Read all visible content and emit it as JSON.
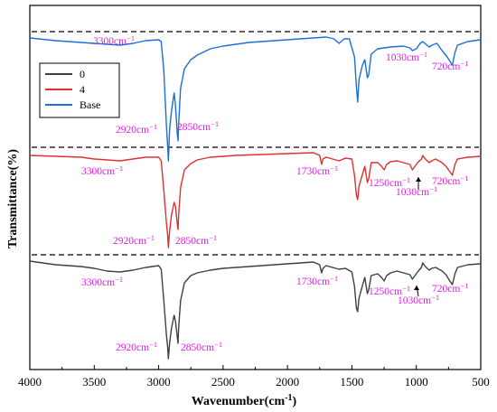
{
  "chart_data": {
    "type": "line",
    "title": "",
    "xlabel": "Wavenumber(cm",
    "xlabel_sup": "-1",
    "xlabel_close": ")",
    "ylabel": "Transmittance(%)",
    "xlim": [
      4000,
      500
    ],
    "x_reversed": true,
    "x_ticks": [
      4000,
      3500,
      3000,
      2500,
      2000,
      1500,
      1000,
      500
    ],
    "x_tick_labels": [
      "4000",
      "3500",
      "3000",
      "2500",
      "2000",
      "1500",
      "1000",
      "500"
    ],
    "y_ticks_shown": false,
    "legend": {
      "position": "upper-left",
      "entries": [
        {
          "label": "0",
          "color": "#404040"
        },
        {
          "label": "4",
          "color": "#e03030"
        },
        {
          "label": "Base",
          "color": "#1a6fd8"
        }
      ]
    },
    "baselines": [
      {
        "series": "Base",
        "style": "dashed",
        "color": "#000000"
      },
      {
        "series": "4",
        "style": "dashed",
        "color": "#000000"
      },
      {
        "series": "0",
        "style": "dashed",
        "color": "#000000"
      }
    ],
    "series": [
      {
        "name": "Base",
        "color": "#1a6fd8",
        "points": [
          [
            4000,
            4
          ],
          [
            3800,
            7
          ],
          [
            3600,
            9
          ],
          [
            3400,
            11
          ],
          [
            3300,
            12
          ],
          [
            3200,
            10
          ],
          [
            3100,
            7
          ],
          [
            3000,
            6
          ],
          [
            2980,
            8
          ],
          [
            2960,
            40
          ],
          [
            2940,
            100
          ],
          [
            2930,
            125
          ],
          [
            2925,
            140
          ],
          [
            2915,
            105
          ],
          [
            2900,
            85
          ],
          [
            2880,
            65
          ],
          [
            2870,
            78
          ],
          [
            2855,
            110
          ],
          [
            2850,
            118
          ],
          [
            2845,
            100
          ],
          [
            2830,
            60
          ],
          [
            2800,
            38
          ],
          [
            2750,
            28
          ],
          [
            2700,
            23
          ],
          [
            2600,
            16
          ],
          [
            2500,
            13
          ],
          [
            2400,
            11
          ],
          [
            2300,
            9
          ],
          [
            2200,
            8
          ],
          [
            2000,
            6
          ],
          [
            1800,
            4
          ],
          [
            1700,
            3
          ],
          [
            1640,
            5
          ],
          [
            1600,
            10
          ],
          [
            1560,
            5
          ],
          [
            1520,
            5
          ],
          [
            1480,
            25
          ],
          [
            1465,
            58
          ],
          [
            1455,
            75
          ],
          [
            1445,
            50
          ],
          [
            1420,
            35
          ],
          [
            1400,
            28
          ],
          [
            1380,
            48
          ],
          [
            1370,
            45
          ],
          [
            1350,
            22
          ],
          [
            1300,
            16
          ],
          [
            1200,
            14
          ],
          [
            1100,
            13
          ],
          [
            1050,
            15
          ],
          [
            1030,
            18
          ],
          [
            1000,
            16
          ],
          [
            970,
            10
          ],
          [
            950,
            8
          ],
          [
            900,
            14
          ],
          [
            880,
            12
          ],
          [
            840,
            10
          ],
          [
            800,
            18
          ],
          [
            760,
            25
          ],
          [
            730,
            32
          ],
          [
            720,
            34
          ],
          [
            700,
            20
          ],
          [
            680,
            12
          ],
          [
            600,
            8
          ],
          [
            500,
            6
          ]
        ],
        "peak_labels": [
          {
            "text": "3300cm",
            "x_wn": 3300,
            "anchor_level": 0.07
          },
          {
            "text": "2920cm",
            "x_wn": 2920,
            "anchor_level": 0.78
          },
          {
            "text": "2850cm",
            "x_wn": 2850,
            "anchor_level": 0.72
          },
          {
            "text": "1030cm",
            "x_wn": 1030,
            "anchor_level": 0.22
          },
          {
            "text": "720cm",
            "x_wn": 720,
            "anchor_level": 0.32
          }
        ]
      },
      {
        "name": "4",
        "color": "#e03030",
        "points": [
          [
            4000,
            6
          ],
          [
            3800,
            7
          ],
          [
            3600,
            8
          ],
          [
            3500,
            10
          ],
          [
            3400,
            11
          ],
          [
            3300,
            12
          ],
          [
            3200,
            10
          ],
          [
            3100,
            8
          ],
          [
            3000,
            8
          ],
          [
            2980,
            12
          ],
          [
            2960,
            45
          ],
          [
            2940,
            80
          ],
          [
            2930,
            95
          ],
          [
            2925,
            108
          ],
          [
            2915,
            90
          ],
          [
            2900,
            72
          ],
          [
            2880,
            58
          ],
          [
            2870,
            62
          ],
          [
            2855,
            82
          ],
          [
            2850,
            88
          ],
          [
            2845,
            72
          ],
          [
            2830,
            42
          ],
          [
            2800,
            22
          ],
          [
            2750,
            15
          ],
          [
            2700,
            11
          ],
          [
            2600,
            8
          ],
          [
            2500,
            7
          ],
          [
            2400,
            6
          ],
          [
            2200,
            5
          ],
          [
            2000,
            4
          ],
          [
            1800,
            3
          ],
          [
            1750,
            6
          ],
          [
            1735,
            16
          ],
          [
            1725,
            10
          ],
          [
            1700,
            8
          ],
          [
            1650,
            10
          ],
          [
            1600,
            12
          ],
          [
            1550,
            9
          ],
          [
            1500,
            10
          ],
          [
            1480,
            28
          ],
          [
            1465,
            50
          ],
          [
            1455,
            55
          ],
          [
            1445,
            40
          ],
          [
            1420,
            28
          ],
          [
            1400,
            18
          ],
          [
            1380,
            36
          ],
          [
            1370,
            32
          ],
          [
            1350,
            14
          ],
          [
            1300,
            14
          ],
          [
            1270,
            18
          ],
          [
            1250,
            22
          ],
          [
            1230,
            16
          ],
          [
            1200,
            13
          ],
          [
            1150,
            12
          ],
          [
            1100,
            14
          ],
          [
            1050,
            16
          ],
          [
            1030,
            22
          ],
          [
            1010,
            18
          ],
          [
            990,
            14
          ],
          [
            960,
            10
          ],
          [
            950,
            6
          ],
          [
            930,
            10
          ],
          [
            900,
            14
          ],
          [
            880,
            12
          ],
          [
            850,
            10
          ],
          [
            800,
            14
          ],
          [
            770,
            18
          ],
          [
            740,
            24
          ],
          [
            720,
            28
          ],
          [
            700,
            16
          ],
          [
            680,
            10
          ],
          [
            600,
            8
          ],
          [
            500,
            7
          ]
        ],
        "peak_labels": [
          {
            "text": "3300cm",
            "x_wn": 3300
          },
          {
            "text": "2920cm",
            "x_wn": 2920
          },
          {
            "text": "2850cm",
            "x_wn": 2850
          },
          {
            "text": "1730cm",
            "x_wn": 1730
          },
          {
            "text": "1250cm",
            "x_wn": 1250
          },
          {
            "text": "1030cm",
            "x_wn": 1030
          },
          {
            "text": "720cm",
            "x_wn": 720
          }
        ]
      },
      {
        "name": "0",
        "color": "#404040",
        "points": [
          [
            4000,
            4
          ],
          [
            3800,
            8
          ],
          [
            3600,
            10
          ],
          [
            3500,
            12
          ],
          [
            3400,
            15
          ],
          [
            3300,
            16
          ],
          [
            3200,
            14
          ],
          [
            3100,
            11
          ],
          [
            3000,
            9
          ],
          [
            2980,
            13
          ],
          [
            2960,
            48
          ],
          [
            2940,
            85
          ],
          [
            2930,
            100
          ],
          [
            2925,
            112
          ],
          [
            2915,
            95
          ],
          [
            2900,
            78
          ],
          [
            2880,
            64
          ],
          [
            2870,
            70
          ],
          [
            2855,
            88
          ],
          [
            2850,
            95
          ],
          [
            2845,
            78
          ],
          [
            2830,
            48
          ],
          [
            2800,
            28
          ],
          [
            2750,
            20
          ],
          [
            2700,
            17
          ],
          [
            2600,
            14
          ],
          [
            2500,
            12
          ],
          [
            2400,
            11
          ],
          [
            2200,
            9
          ],
          [
            2000,
            7
          ],
          [
            1800,
            5
          ],
          [
            1750,
            8
          ],
          [
            1735,
            17
          ],
          [
            1725,
            12
          ],
          [
            1700,
            9
          ],
          [
            1650,
            11
          ],
          [
            1600,
            13
          ],
          [
            1550,
            12
          ],
          [
            1500,
            16
          ],
          [
            1480,
            32
          ],
          [
            1465,
            56
          ],
          [
            1455,
            60
          ],
          [
            1445,
            45
          ],
          [
            1420,
            32
          ],
          [
            1400,
            22
          ],
          [
            1380,
            40
          ],
          [
            1370,
            36
          ],
          [
            1350,
            20
          ],
          [
            1300,
            18
          ],
          [
            1270,
            22
          ],
          [
            1250,
            26
          ],
          [
            1230,
            20
          ],
          [
            1200,
            17
          ],
          [
            1150,
            15
          ],
          [
            1100,
            17
          ],
          [
            1050,
            19
          ],
          [
            1030,
            24
          ],
          [
            1010,
            20
          ],
          [
            990,
            16
          ],
          [
            960,
            11
          ],
          [
            950,
            6
          ],
          [
            930,
            10
          ],
          [
            900,
            14
          ],
          [
            880,
            12
          ],
          [
            850,
            11
          ],
          [
            800,
            15
          ],
          [
            770,
            19
          ],
          [
            740,
            26
          ],
          [
            720,
            30
          ],
          [
            700,
            18
          ],
          [
            680,
            11
          ],
          [
            600,
            8
          ],
          [
            500,
            7
          ]
        ],
        "peak_labels": [
          {
            "text": "3300cm",
            "x_wn": 3300
          },
          {
            "text": "2920cm",
            "x_wn": 2920
          },
          {
            "text": "2850cm",
            "x_wn": 2850
          },
          {
            "text": "1730cm",
            "x_wn": 1730
          },
          {
            "text": "1250cm",
            "x_wn": 1250
          },
          {
            "text": "1030cm",
            "x_wn": 1030
          },
          {
            "text": "720cm",
            "x_wn": 720
          }
        ]
      }
    ]
  },
  "peak_label_sup": "−1"
}
